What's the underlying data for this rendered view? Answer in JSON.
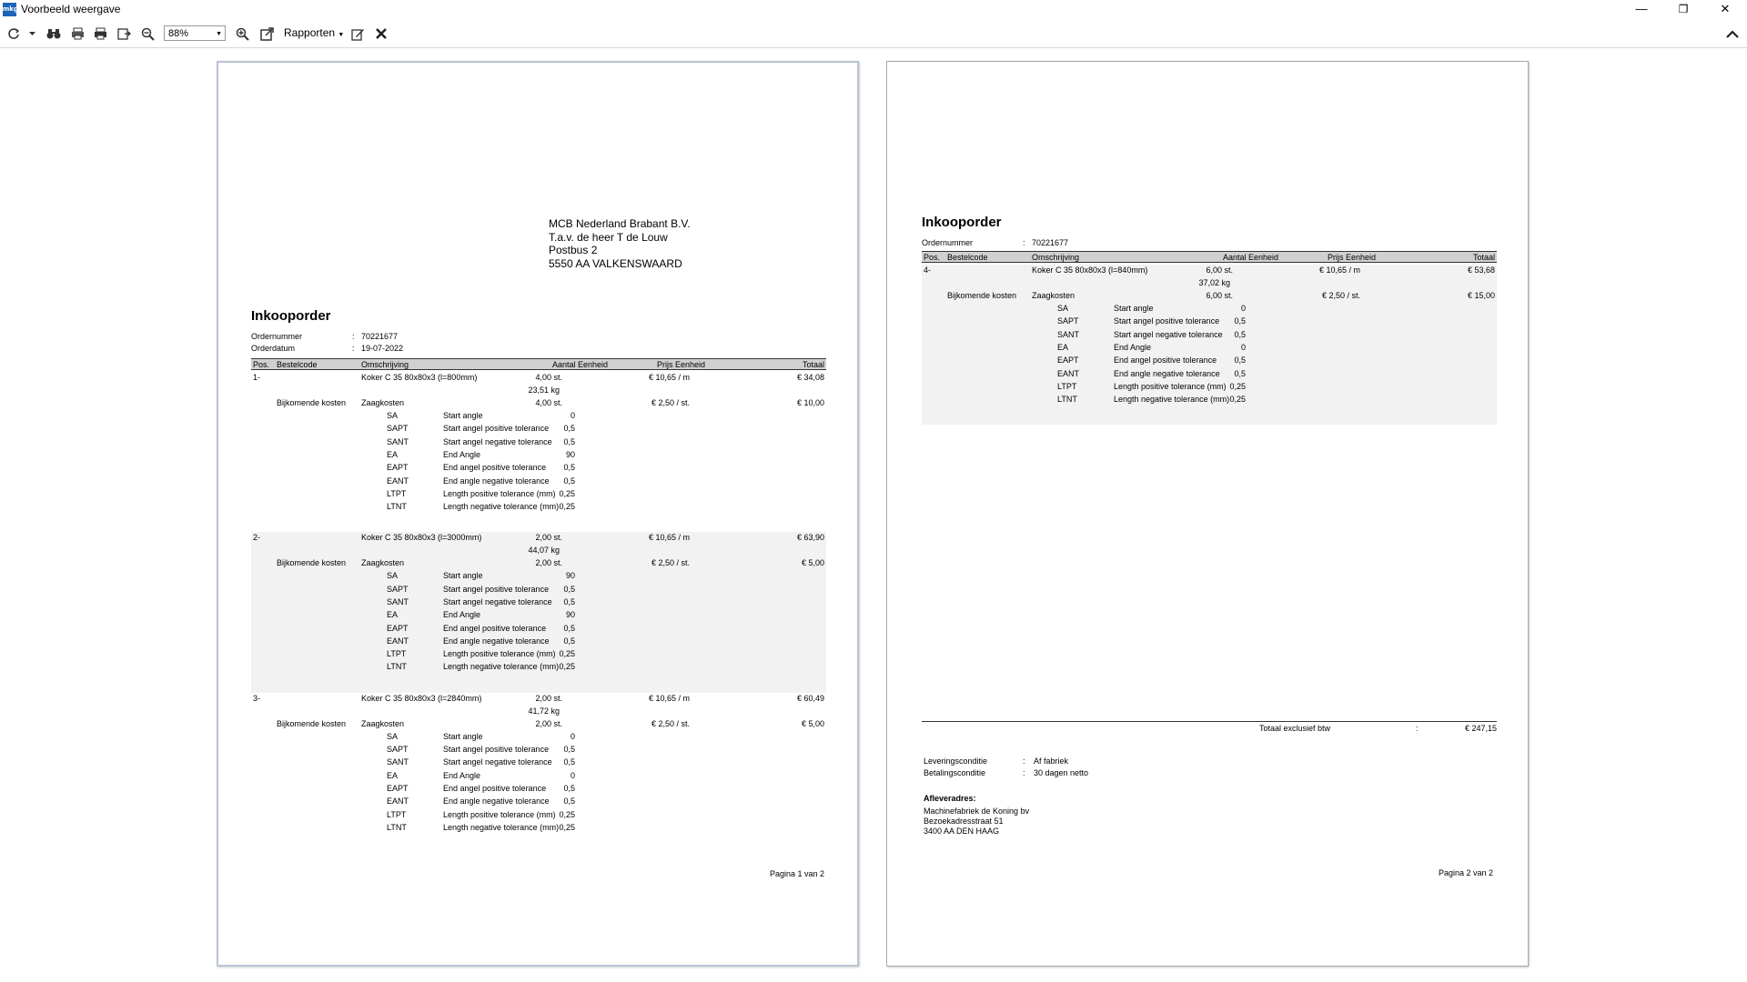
{
  "window": {
    "title": "Voorbeeld weergave",
    "app_icon": "mkg",
    "minimize": "—",
    "maximize": "❐",
    "close": "✕"
  },
  "toolbar": {
    "zoom": "88%",
    "reports_label": "Rapporten"
  },
  "page1": {
    "address": [
      "MCB Nederland Brabant B.V.",
      "T.a.v. de heer T de Louw",
      "Postbus 2",
      "5550 AA VALKENSWAARD"
    ],
    "title": "Inkooporder",
    "ordernummer_label": "Ordernummer",
    "ordernummer": "70221677",
    "orderdatum_label": "Orderdatum",
    "orderdatum": "19-07-2022",
    "colon": ":",
    "headers": [
      "Pos.",
      "Bestelcode",
      "Omschrijving",
      "Aantal Eenheid",
      "Prijs Eenheid",
      "Totaal"
    ],
    "positions": [
      {
        "pos": "1-",
        "desc": "Koker C 35 80x80x3 (l=800mm)",
        "qty": "4,00 st.",
        "price": "€ 10,65  / m",
        "total": "€ 34,08",
        "weight": "23,51  kg",
        "extra_label": "Bijkomende kosten",
        "extra_desc": "Zaagkosten",
        "extra_qty": "4,00 st.",
        "extra_price": "€ 2,50  / st.",
        "extra_total": "€ 10,00",
        "params": [
          [
            "SA",
            "Start angle",
            "0"
          ],
          [
            "SAPT",
            "Start angel positive tolerance",
            "0,5"
          ],
          [
            "SANT",
            "Start angel negative tolerance",
            "0,5"
          ],
          [
            "EA",
            "End Angle",
            "90"
          ],
          [
            "EAPT",
            "End angel positive tolerance",
            "0,5"
          ],
          [
            "EANT",
            "End angle negative tolerance",
            "0,5"
          ],
          [
            "LTPT",
            "Length positive tolerance (mm)",
            "0,25"
          ],
          [
            "LTNT",
            "Length negative tolerance (mm)",
            "0,25"
          ]
        ]
      },
      {
        "pos": "2-",
        "desc": "Koker C 35 80x80x3 (l=3000mm)",
        "qty": "2,00 st.",
        "price": "€ 10,65  / m",
        "total": "€ 63,90",
        "weight": "44,07  kg",
        "extra_label": "Bijkomende kosten",
        "extra_desc": "Zaagkosten",
        "extra_qty": "2,00 st.",
        "extra_price": "€ 2,50  / st.",
        "extra_total": "€ 5,00",
        "params": [
          [
            "SA",
            "Start angle",
            "90"
          ],
          [
            "SAPT",
            "Start angel positive tolerance",
            "0,5"
          ],
          [
            "SANT",
            "Start angel negative tolerance",
            "0,5"
          ],
          [
            "EA",
            "End Angle",
            "90"
          ],
          [
            "EAPT",
            "End angel positive tolerance",
            "0,5"
          ],
          [
            "EANT",
            "End angle negative tolerance",
            "0,5"
          ],
          [
            "LTPT",
            "Length positive tolerance (mm)",
            "0,25"
          ],
          [
            "LTNT",
            "Length negative tolerance (mm)",
            "0,25"
          ]
        ]
      },
      {
        "pos": "3-",
        "desc": "Koker C 35 80x80x3 (l=2840mm)",
        "qty": "2,00 st.",
        "price": "€ 10,65  / m",
        "total": "€ 60,49",
        "weight": "41,72  kg",
        "extra_label": "Bijkomende kosten",
        "extra_desc": "Zaagkosten",
        "extra_qty": "2,00 st.",
        "extra_price": "€ 2,50  / st.",
        "extra_total": "€ 5,00",
        "params": [
          [
            "SA",
            "Start angle",
            "0"
          ],
          [
            "SAPT",
            "Start angel positive tolerance",
            "0,5"
          ],
          [
            "SANT",
            "Start angel negative tolerance",
            "0,5"
          ],
          [
            "EA",
            "End Angle",
            "0"
          ],
          [
            "EAPT",
            "End angel positive tolerance",
            "0,5"
          ],
          [
            "EANT",
            "End angle negative tolerance",
            "0,5"
          ],
          [
            "LTPT",
            "Length positive tolerance (mm)",
            "0,25"
          ],
          [
            "LTNT",
            "Length negative tolerance (mm)",
            "0,25"
          ]
        ]
      }
    ],
    "page_number": "Pagina 1 van 2"
  },
  "page2": {
    "title": "Inkooporder",
    "ordernummer_label": "Ordernummer",
    "ordernummer": "70221677",
    "colon": ":",
    "headers": [
      "Pos.",
      "Bestelcode",
      "Omschrijving",
      "Aantal Eenheid",
      "Prijs Eenheid",
      "Totaal"
    ],
    "positions": [
      {
        "pos": "4-",
        "desc": "Koker C 35 80x80x3 (l=840mm)",
        "qty": "6,00 st.",
        "price": "€ 10,65  / m",
        "total": "€ 53,68",
        "weight": "37,02  kg",
        "extra_label": "Bijkomende kosten",
        "extra_desc": "Zaagkosten",
        "extra_qty": "6,00 st.",
        "extra_price": "€ 2,50  / st.",
        "extra_total": "€ 15,00",
        "params": [
          [
            "SA",
            "Start angle",
            "0"
          ],
          [
            "SAPT",
            "Start angel positive tolerance",
            "0,5"
          ],
          [
            "SANT",
            "Start angel negative tolerance",
            "0,5"
          ],
          [
            "EA",
            "End Angle",
            "0"
          ],
          [
            "EAPT",
            "End angel positive tolerance",
            "0,5"
          ],
          [
            "EANT",
            "End angle negative tolerance",
            "0,5"
          ],
          [
            "LTPT",
            "Length positive tolerance (mm)",
            "0,25"
          ],
          [
            "LTNT",
            "Length negative tolerance (mm)",
            "0,25"
          ]
        ]
      }
    ],
    "total_label": "Totaal exclusief btw",
    "total_value": "€ 247,15",
    "levering_label": "Leveringsconditie",
    "levering": "Af fabriek",
    "betaling_label": "Betalingsconditie",
    "betaling": "30 dagen netto",
    "aflever_label": "Afleveradres:",
    "aflever": [
      "Machinefabriek de Koning bv",
      "Bezoekadresstraat 51",
      "3400 AA DEN HAAG"
    ],
    "page_number": "Pagina 2 van 2"
  }
}
